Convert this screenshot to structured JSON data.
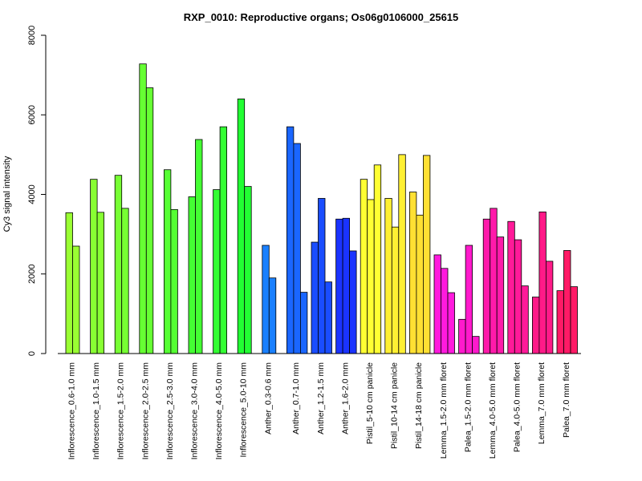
{
  "chart_data": {
    "type": "bar",
    "title": "RXP_0010: Reproductive organs; Os06g0106000_25615",
    "xlabel": "",
    "ylabel": "Cy3 signal intensity",
    "ylim": [
      0,
      8000
    ],
    "yticks": [
      0,
      2000,
      4000,
      6000,
      8000
    ],
    "grid": false,
    "groups": [
      {
        "label": "Inflorescence_0.6-1.0 mm",
        "color": "#9AFF33",
        "values": [
          3540,
          2700
        ]
      },
      {
        "label": "Inflorescence_1.0-1.5 mm",
        "color": "#88FF33",
        "values": [
          4380,
          3550
        ]
      },
      {
        "label": "Inflorescence_1.5-2.0 mm",
        "color": "#77FF33",
        "values": [
          4480,
          3650
        ]
      },
      {
        "label": "Inflorescence_2.0-2.5 mm",
        "color": "#66FF33",
        "values": [
          7280,
          6680
        ]
      },
      {
        "label": "Inflorescence_2.5-3.0 mm",
        "color": "#55FF33",
        "values": [
          4620,
          3620
        ]
      },
      {
        "label": "Inflorescence_3.0-4.0 mm",
        "color": "#44FF33",
        "values": [
          3940,
          5380
        ]
      },
      {
        "label": "Inflorescence_4.0-5.0 mm",
        "color": "#33FF33",
        "values": [
          4120,
          5700
        ]
      },
      {
        "label": "Inflorescence_5.0-10 mm",
        "color": "#22FF33",
        "values": [
          6400,
          4200
        ]
      },
      {
        "label": "Anther_0.3-0.6 mm",
        "color": "#1A80FF",
        "values": [
          2720,
          1900
        ]
      },
      {
        "label": "Anther_0.7-1.0 mm",
        "color": "#1A66FF",
        "values": [
          5700,
          5280,
          1540
        ]
      },
      {
        "label": "Anther_1.2-1.5 mm",
        "color": "#1A4DFF",
        "values": [
          2800,
          3900,
          1800
        ]
      },
      {
        "label": "Anther_1.6-2.0 mm",
        "color": "#1A33FF",
        "values": [
          3380,
          3400,
          2580
        ]
      },
      {
        "label": "Pistil_5-10 cm panicle",
        "color": "#FFFF33",
        "values": [
          4380,
          3870,
          4740
        ]
      },
      {
        "label": "Pistil_10-14 cm panicle",
        "color": "#FFF033",
        "values": [
          3900,
          3180,
          5000
        ]
      },
      {
        "label": "Pistil_14-18 cm panicle",
        "color": "#FFE033",
        "values": [
          4060,
          3480,
          4980
        ]
      },
      {
        "label": "Lemma_1.5-2.0 mm floret",
        "color": "#FF1ADD",
        "values": [
          2480,
          2140,
          1530
        ]
      },
      {
        "label": "Palea_1.5-2.0 mm floret",
        "color": "#FF1ACC",
        "values": [
          860,
          2720,
          430
        ]
      },
      {
        "label": "Lemma_4.0-5.0 mm floret",
        "color": "#FF1AAA",
        "values": [
          3380,
          3650,
          2930
        ]
      },
      {
        "label": "Palea_4.0-5.0 mm floret",
        "color": "#FF1A99",
        "values": [
          3320,
          2860,
          1700
        ]
      },
      {
        "label": "Lemma_7.0 mm floret",
        "color": "#FF1A88",
        "values": [
          1420,
          3560,
          2320
        ]
      },
      {
        "label": "Palea_7.0 mm floret",
        "color": "#FF1A66",
        "values": [
          1580,
          2590,
          1680
        ]
      }
    ]
  }
}
